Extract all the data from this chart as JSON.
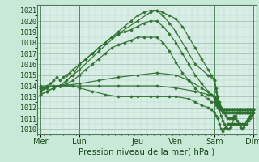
{
  "background_color": "#c8e8d8",
  "plot_bg_color": "#d8ede5",
  "grid_minor_color": "#b0d4c0",
  "grid_major_color": "#90b8a0",
  "line_color": "#2d6e2d",
  "title": "Pression niveau de la mer( hPa )",
  "ylabel_values": [
    1010,
    1011,
    1012,
    1013,
    1014,
    1015,
    1016,
    1017,
    1018,
    1019,
    1020,
    1021
  ],
  "x_ticks": [
    0,
    48,
    120,
    168,
    216,
    264
  ],
  "x_labels": [
    "Mer",
    "Lun",
    "Jeu",
    "Ven",
    "Sam",
    "Dim"
  ],
  "ylim": [
    1009.5,
    1021.5
  ],
  "xlim": [
    -4,
    268
  ],
  "series": [
    [
      0,
      1013.5,
      4,
      1013.8,
      8,
      1014.0,
      12,
      1014.2,
      16,
      1014.5,
      20,
      1014.8,
      24,
      1014.5,
      28,
      1014.8,
      32,
      1015.0,
      36,
      1015.2,
      40,
      1015.5,
      48,
      1016.0,
      56,
      1016.5,
      64,
      1017.0,
      72,
      1017.5,
      80,
      1018.0,
      88,
      1018.5,
      96,
      1019.0,
      104,
      1019.5,
      112,
      1020.0,
      120,
      1020.5,
      128,
      1020.8,
      136,
      1021.0,
      144,
      1021.0,
      152,
      1020.8,
      160,
      1020.5,
      168,
      1020.2,
      176,
      1019.5,
      184,
      1018.5,
      192,
      1017.5,
      200,
      1016.5,
      208,
      1015.5,
      212,
      1015.0,
      216,
      1014.5,
      218,
      1013.5,
      220,
      1012.5,
      222,
      1011.8,
      224,
      1011.2,
      226,
      1010.8,
      228,
      1010.5,
      230,
      1010.2,
      232,
      1010.0,
      234,
      1010.0,
      236,
      1010.2,
      238,
      1010.5,
      240,
      1011.0,
      242,
      1011.0,
      244,
      1010.8,
      246,
      1010.5,
      248,
      1010.2,
      250,
      1010.0,
      252,
      1010.2,
      254,
      1010.5,
      256,
      1010.8,
      258,
      1011.0,
      260,
      1011.2,
      262,
      1011.5,
      264,
      1011.8
    ],
    [
      0,
      1013.8,
      24,
      1014.0,
      48,
      1015.5,
      72,
      1017.2,
      96,
      1018.8,
      120,
      1020.0,
      136,
      1020.8,
      144,
      1021.0,
      152,
      1020.5,
      160,
      1019.8,
      168,
      1019.0,
      180,
      1017.5,
      192,
      1016.0,
      208,
      1015.0,
      216,
      1014.5,
      218,
      1013.8,
      220,
      1013.0,
      222,
      1012.5,
      224,
      1012.0,
      226,
      1011.8,
      228,
      1011.5,
      230,
      1011.2,
      232,
      1011.0,
      234,
      1011.0,
      236,
      1011.0,
      238,
      1011.0,
      240,
      1011.2,
      242,
      1011.2,
      244,
      1011.5,
      246,
      1011.5,
      248,
      1011.5,
      250,
      1011.5,
      252,
      1011.5,
      254,
      1011.5,
      256,
      1011.5,
      258,
      1011.5,
      260,
      1011.5,
      262,
      1011.5,
      264,
      1011.5
    ],
    [
      0,
      1013.5,
      8,
      1013.8,
      16,
      1014.0,
      24,
      1014.0,
      32,
      1014.5,
      40,
      1015.0,
      48,
      1016.0,
      56,
      1016.5,
      64,
      1017.0,
      72,
      1017.5,
      80,
      1018.0,
      88,
      1018.5,
      96,
      1018.8,
      104,
      1019.0,
      112,
      1019.2,
      120,
      1019.5,
      128,
      1019.8,
      136,
      1020.0,
      144,
      1020.0,
      152,
      1019.5,
      160,
      1018.8,
      168,
      1018.0,
      176,
      1017.0,
      184,
      1016.0,
      192,
      1015.0,
      200,
      1014.2,
      208,
      1013.5,
      212,
      1013.2,
      216,
      1012.8,
      218,
      1012.5,
      220,
      1012.2,
      222,
      1012.0,
      224,
      1011.8,
      226,
      1011.5,
      228,
      1011.5,
      230,
      1011.5,
      232,
      1011.5,
      234,
      1011.5,
      236,
      1011.5,
      238,
      1011.5,
      240,
      1011.5,
      242,
      1011.5,
      244,
      1011.5,
      246,
      1011.5,
      248,
      1011.5,
      250,
      1011.5,
      252,
      1011.5,
      254,
      1011.5,
      256,
      1011.5,
      258,
      1011.5,
      260,
      1011.5,
      262,
      1011.5,
      264,
      1011.5
    ],
    [
      0,
      1013.2,
      8,
      1013.5,
      16,
      1013.8,
      24,
      1014.0,
      32,
      1014.2,
      40,
      1014.5,
      48,
      1015.0,
      56,
      1015.5,
      64,
      1016.0,
      72,
      1016.5,
      80,
      1017.0,
      88,
      1017.5,
      96,
      1017.8,
      104,
      1018.0,
      112,
      1018.2,
      120,
      1018.5,
      128,
      1018.5,
      136,
      1018.5,
      144,
      1018.5,
      152,
      1018.0,
      160,
      1017.2,
      168,
      1016.2,
      176,
      1015.2,
      184,
      1014.5,
      192,
      1013.8,
      200,
      1013.2,
      208,
      1012.8,
      212,
      1012.5,
      216,
      1012.5,
      218,
      1012.2,
      220,
      1012.0,
      222,
      1011.8,
      224,
      1011.8,
      226,
      1011.8,
      228,
      1011.8,
      230,
      1011.8,
      232,
      1011.8,
      234,
      1011.8,
      236,
      1011.8,
      238,
      1011.8,
      240,
      1011.8,
      242,
      1011.8,
      244,
      1011.8,
      246,
      1011.8,
      248,
      1011.8,
      250,
      1011.8,
      252,
      1011.8,
      254,
      1011.8,
      256,
      1011.8,
      258,
      1011.8,
      260,
      1011.8,
      262,
      1011.8,
      264,
      1011.8
    ],
    [
      0,
      1014.0,
      24,
      1014.0,
      48,
      1014.2,
      72,
      1014.5,
      96,
      1014.8,
      120,
      1015.0,
      144,
      1015.2,
      168,
      1015.0,
      184,
      1014.5,
      200,
      1013.8,
      212,
      1013.2,
      216,
      1013.0,
      218,
      1012.8,
      220,
      1012.5,
      222,
      1012.2,
      224,
      1012.0,
      226,
      1011.8,
      228,
      1011.8,
      230,
      1011.8,
      232,
      1011.8,
      234,
      1011.8,
      236,
      1011.8,
      238,
      1011.8,
      240,
      1011.8,
      242,
      1011.8,
      244,
      1011.8,
      246,
      1011.8,
      248,
      1011.8,
      250,
      1011.8,
      252,
      1011.8,
      254,
      1011.8,
      256,
      1011.8,
      258,
      1011.8,
      260,
      1011.8,
      262,
      1011.8,
      264,
      1011.8
    ],
    [
      0,
      1013.8,
      24,
      1014.0,
      48,
      1014.0,
      72,
      1014.0,
      96,
      1014.0,
      120,
      1014.0,
      144,
      1014.0,
      168,
      1013.8,
      192,
      1013.5,
      208,
      1013.2,
      216,
      1013.0,
      218,
      1012.8,
      220,
      1012.5,
      222,
      1012.2,
      224,
      1012.0,
      226,
      1011.8,
      228,
      1011.8,
      232,
      1011.8,
      236,
      1011.8,
      240,
      1011.8,
      244,
      1011.8,
      248,
      1011.8,
      252,
      1011.8,
      256,
      1011.8,
      260,
      1011.8,
      264,
      1011.8
    ],
    [
      0,
      1013.2,
      8,
      1013.5,
      16,
      1013.8,
      24,
      1014.0,
      40,
      1014.0,
      48,
      1013.8,
      64,
      1013.5,
      80,
      1013.2,
      96,
      1013.0,
      112,
      1013.0,
      120,
      1013.0,
      136,
      1013.0,
      144,
      1013.0,
      160,
      1013.0,
      168,
      1013.0,
      184,
      1012.8,
      192,
      1012.5,
      200,
      1012.2,
      208,
      1012.0,
      212,
      1011.8,
      216,
      1011.5,
      218,
      1011.2,
      220,
      1011.0,
      222,
      1010.5,
      224,
      1010.0,
      226,
      1009.8,
      228,
      1010.0,
      230,
      1010.2,
      232,
      1010.5,
      234,
      1010.5,
      236,
      1010.5,
      238,
      1010.5,
      240,
      1010.5,
      242,
      1010.5,
      244,
      1010.5,
      246,
      1010.5,
      248,
      1010.5,
      250,
      1010.5,
      252,
      1010.5,
      254,
      1010.5,
      256,
      1010.5,
      258,
      1010.8,
      260,
      1011.0,
      262,
      1011.2,
      264,
      1011.5
    ]
  ]
}
